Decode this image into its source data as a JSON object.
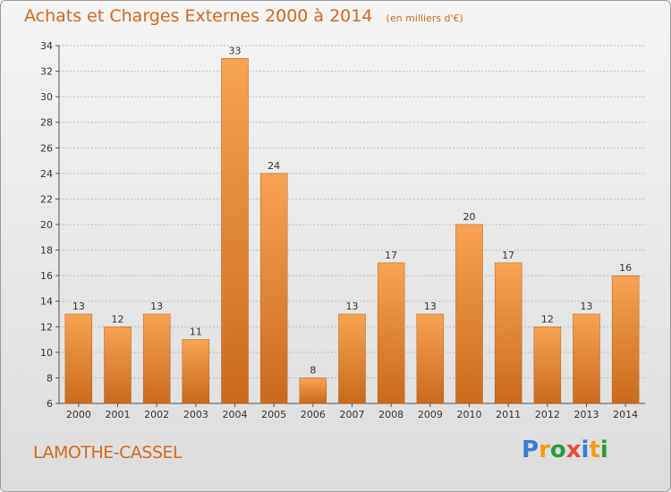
{
  "header": {
    "title": "Achats et Charges Externes 2000 à 2014",
    "unit": "(en milliers d'€)"
  },
  "footer": {
    "city": "LAMOTHE-CASSEL",
    "logo_letters": [
      "P",
      "r",
      "o",
      "x",
      "i",
      "t",
      "i"
    ],
    "logo_colors": [
      "#3a7bd5",
      "#f39c12",
      "#2a9d3f",
      "#e74c3c",
      "#3a7bd5",
      "#f39c12",
      "#2a9d3f"
    ]
  },
  "colors": {
    "title": "#d2691e",
    "bar_top": "#f7a453",
    "bar_bottom": "#c9691d",
    "grid": "#bbbbbb"
  },
  "chart_data": {
    "type": "bar",
    "title": "Achats et Charges Externes 2000 à 2014",
    "subtitle": "(en milliers d'€)",
    "xlabel": "",
    "ylabel": "",
    "categories": [
      "2000",
      "2001",
      "2002",
      "2003",
      "2004",
      "2005",
      "2006",
      "2007",
      "2008",
      "2009",
      "2010",
      "2011",
      "2012",
      "2013",
      "2014"
    ],
    "values": [
      13,
      12,
      13,
      11,
      33,
      24,
      8,
      13,
      17,
      13,
      20,
      17,
      12,
      13,
      16
    ],
    "ylim": [
      6,
      34
    ],
    "yticks": [
      6,
      8,
      10,
      12,
      14,
      16,
      18,
      20,
      22,
      24,
      26,
      28,
      30,
      32,
      34
    ],
    "grid": true,
    "data_labels": true
  }
}
